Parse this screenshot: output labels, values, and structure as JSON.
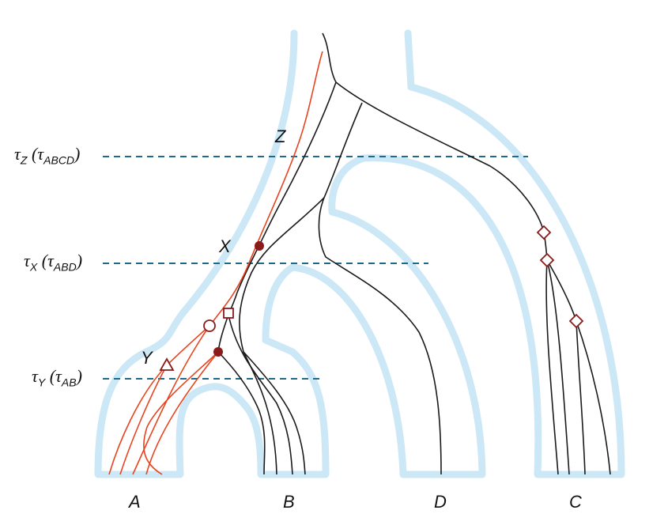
{
  "tau_labels": {
    "z": {
      "main": "τ",
      "sub": "Z",
      "paren_main": "τ",
      "paren_sub": "ABCD"
    },
    "x": {
      "main": "τ",
      "sub": "X",
      "paren_main": "τ",
      "paren_sub": "ABD"
    },
    "y": {
      "main": "τ",
      "sub": "Y",
      "paren_main": "τ",
      "paren_sub": "AB"
    }
  },
  "node_labels": {
    "z": "Z",
    "x": "X",
    "y": "Y"
  },
  "species": {
    "a": "A",
    "b": "B",
    "d": "D",
    "c": "C"
  },
  "colors": {
    "species_tree": "#cce8f6",
    "gene_tree": "#1a1a1a",
    "gene_tree_red": "#e8431e",
    "marker": "#8b1a1a",
    "dashed_line": "#1f6a8a"
  }
}
